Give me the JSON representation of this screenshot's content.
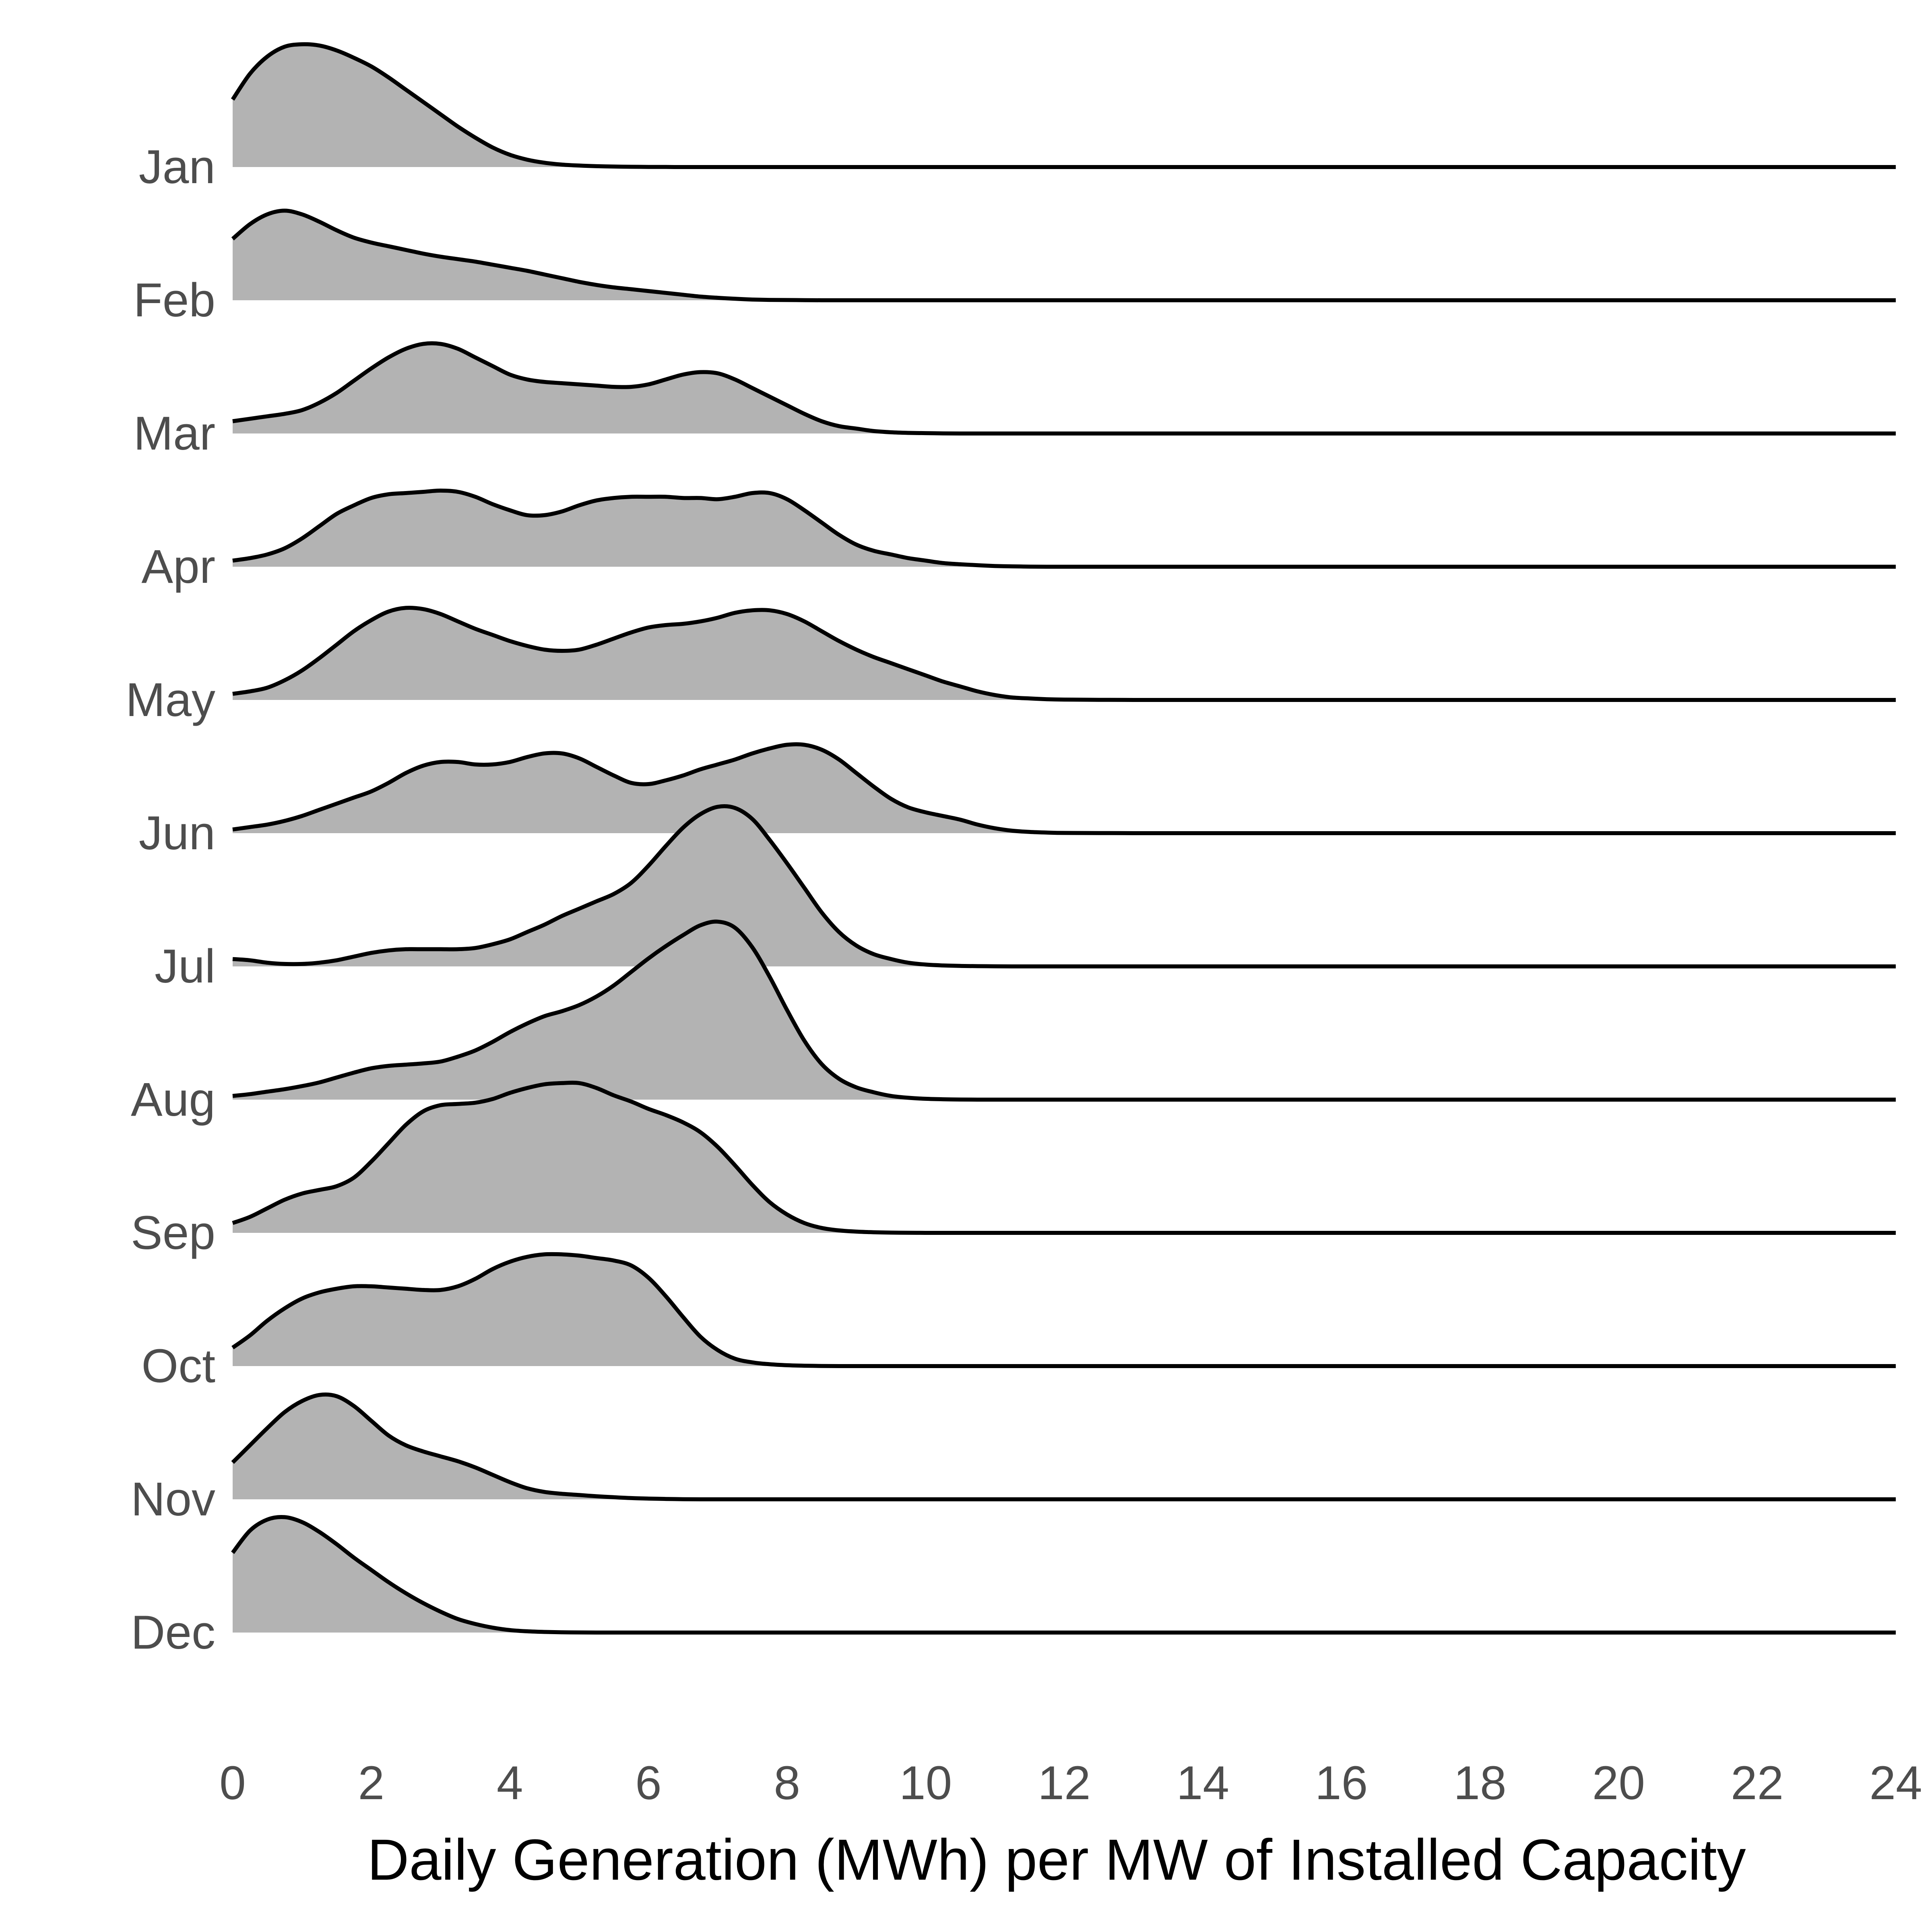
{
  "chart_data": {
    "type": "area",
    "subtype": "ridgeline",
    "title": "",
    "xlabel": "Daily Generation (MWh) per MW of Installed Capacity",
    "ylabel": "",
    "xlim": [
      0,
      24
    ],
    "xticks": [
      0,
      2,
      4,
      6,
      8,
      10,
      12,
      14,
      16,
      18,
      20,
      22,
      24
    ],
    "grid": false,
    "legend": "none",
    "fill_color": "#b3b3b3",
    "line_color": "#000000",
    "categories": [
      "Jan",
      "Feb",
      "Mar",
      "Apr",
      "May",
      "Jun",
      "Jul",
      "Aug",
      "Sep",
      "Oct",
      "Nov",
      "Dec"
    ],
    "x": [
      0,
      0.25,
      0.5,
      0.75,
      1,
      1.25,
      1.5,
      1.75,
      2,
      2.25,
      2.5,
      2.75,
      3,
      3.25,
      3.5,
      3.75,
      4,
      4.25,
      4.5,
      4.75,
      5,
      5.25,
      5.5,
      5.75,
      6,
      6.25,
      6.5,
      6.75,
      7,
      7.25,
      7.5,
      7.75,
      8,
      8.25,
      8.5,
      8.75,
      9,
      9.25,
      9.5,
      9.75,
      10,
      10.25,
      10.5,
      10.75,
      11,
      11.25,
      11.5,
      11.75,
      12,
      12.5,
      13,
      14,
      16,
      18,
      20,
      22,
      24
    ],
    "density_scale_note": "",
    "series": [
      {
        "name": "Jan",
        "values": [
          0.55,
          0.76,
          0.9,
          0.98,
          1.0,
          0.99,
          0.95,
          0.89,
          0.82,
          0.73,
          0.63,
          0.53,
          0.43,
          0.33,
          0.24,
          0.16,
          0.1,
          0.06,
          0.035,
          0.02,
          0.012,
          0.007,
          0.004,
          0.002,
          0.001,
          0.0005,
          0,
          0,
          0,
          0,
          0,
          0,
          0,
          0,
          0,
          0,
          0,
          0,
          0,
          0,
          0,
          0,
          0,
          0,
          0,
          0,
          0,
          0,
          0,
          0,
          0,
          0,
          0,
          0,
          0,
          0,
          0
        ]
      },
      {
        "name": "Feb",
        "values": [
          0.5,
          0.62,
          0.7,
          0.73,
          0.7,
          0.64,
          0.57,
          0.51,
          0.47,
          0.44,
          0.41,
          0.38,
          0.355,
          0.335,
          0.315,
          0.29,
          0.265,
          0.24,
          0.21,
          0.18,
          0.15,
          0.125,
          0.105,
          0.09,
          0.075,
          0.06,
          0.045,
          0.03,
          0.02,
          0.012,
          0.006,
          0.003,
          0.002,
          0.001,
          0,
          0,
          0,
          0,
          0,
          0,
          0,
          0,
          0,
          0,
          0,
          0,
          0,
          0,
          0,
          0,
          0,
          0,
          0,
          0,
          0,
          0,
          0
        ]
      },
      {
        "name": "Mar",
        "values": [
          0.1,
          0.12,
          0.14,
          0.16,
          0.19,
          0.25,
          0.33,
          0.43,
          0.53,
          0.62,
          0.69,
          0.73,
          0.73,
          0.69,
          0.62,
          0.55,
          0.48,
          0.44,
          0.42,
          0.41,
          0.4,
          0.39,
          0.38,
          0.38,
          0.4,
          0.44,
          0.48,
          0.5,
          0.49,
          0.44,
          0.37,
          0.3,
          0.23,
          0.16,
          0.1,
          0.06,
          0.04,
          0.02,
          0.01,
          0.005,
          0.003,
          0.001,
          0,
          0,
          0,
          0,
          0,
          0,
          0,
          0,
          0,
          0,
          0,
          0,
          0,
          0,
          0
        ]
      },
      {
        "name": "Apr",
        "values": [
          0.05,
          0.07,
          0.1,
          0.15,
          0.23,
          0.33,
          0.43,
          0.5,
          0.56,
          0.59,
          0.6,
          0.61,
          0.62,
          0.61,
          0.57,
          0.51,
          0.46,
          0.42,
          0.42,
          0.45,
          0.5,
          0.54,
          0.56,
          0.57,
          0.57,
          0.57,
          0.56,
          0.56,
          0.55,
          0.57,
          0.6,
          0.6,
          0.55,
          0.46,
          0.36,
          0.26,
          0.18,
          0.13,
          0.1,
          0.07,
          0.05,
          0.03,
          0.02,
          0.012,
          0.006,
          0.003,
          0.001,
          0,
          0,
          0,
          0,
          0,
          0,
          0,
          0,
          0,
          0
        ]
      },
      {
        "name": "May",
        "values": [
          0.05,
          0.07,
          0.1,
          0.16,
          0.24,
          0.34,
          0.45,
          0.56,
          0.65,
          0.72,
          0.75,
          0.74,
          0.7,
          0.64,
          0.58,
          0.53,
          0.48,
          0.44,
          0.41,
          0.4,
          0.41,
          0.45,
          0.5,
          0.55,
          0.59,
          0.61,
          0.62,
          0.64,
          0.67,
          0.71,
          0.73,
          0.73,
          0.7,
          0.64,
          0.56,
          0.48,
          0.41,
          0.35,
          0.3,
          0.25,
          0.2,
          0.15,
          0.11,
          0.07,
          0.04,
          0.02,
          0.012,
          0.006,
          0.003,
          0.001,
          0,
          0,
          0,
          0,
          0,
          0,
          0
        ]
      },
      {
        "name": "Jun",
        "values": [
          0.03,
          0.05,
          0.07,
          0.1,
          0.14,
          0.19,
          0.24,
          0.29,
          0.34,
          0.41,
          0.49,
          0.55,
          0.58,
          0.58,
          0.56,
          0.56,
          0.58,
          0.62,
          0.65,
          0.65,
          0.61,
          0.54,
          0.47,
          0.41,
          0.4,
          0.43,
          0.47,
          0.52,
          0.56,
          0.6,
          0.65,
          0.69,
          0.72,
          0.72,
          0.68,
          0.6,
          0.49,
          0.38,
          0.28,
          0.21,
          0.17,
          0.14,
          0.11,
          0.07,
          0.04,
          0.02,
          0.01,
          0.005,
          0.002,
          0.001,
          0,
          0,
          0,
          0,
          0,
          0,
          0
        ]
      },
      {
        "name": "Jul",
        "values": [
          0.06,
          0.05,
          0.03,
          0.02,
          0.02,
          0.03,
          0.05,
          0.08,
          0.11,
          0.13,
          0.14,
          0.14,
          0.14,
          0.14,
          0.15,
          0.18,
          0.22,
          0.28,
          0.34,
          0.41,
          0.47,
          0.53,
          0.59,
          0.68,
          0.82,
          0.98,
          1.13,
          1.24,
          1.3,
          1.29,
          1.2,
          1.03,
          0.84,
          0.64,
          0.44,
          0.28,
          0.17,
          0.1,
          0.06,
          0.03,
          0.015,
          0.008,
          0.004,
          0.002,
          0.001,
          0,
          0,
          0,
          0,
          0,
          0,
          0,
          0,
          0,
          0,
          0,
          0
        ]
      },
      {
        "name": "Aug",
        "values": [
          0.03,
          0.045,
          0.065,
          0.085,
          0.11,
          0.14,
          0.18,
          0.22,
          0.255,
          0.275,
          0.285,
          0.295,
          0.31,
          0.35,
          0.4,
          0.47,
          0.55,
          0.62,
          0.68,
          0.72,
          0.77,
          0.84,
          0.93,
          1.04,
          1.15,
          1.25,
          1.34,
          1.42,
          1.45,
          1.4,
          1.24,
          1.0,
          0.73,
          0.48,
          0.29,
          0.17,
          0.1,
          0.06,
          0.03,
          0.015,
          0.007,
          0.003,
          0.001,
          0,
          0,
          0,
          0,
          0,
          0,
          0,
          0,
          0,
          0,
          0,
          0,
          0,
          0
        ]
      },
      {
        "name": "Sep",
        "values": [
          0.08,
          0.13,
          0.2,
          0.27,
          0.32,
          0.35,
          0.38,
          0.45,
          0.58,
          0.73,
          0.88,
          0.99,
          1.04,
          1.05,
          1.06,
          1.09,
          1.14,
          1.18,
          1.21,
          1.22,
          1.22,
          1.18,
          1.12,
          1.07,
          1.01,
          0.96,
          0.9,
          0.82,
          0.7,
          0.55,
          0.39,
          0.25,
          0.15,
          0.08,
          0.04,
          0.02,
          0.01,
          0.005,
          0.002,
          0.001,
          0,
          0,
          0,
          0,
          0,
          0,
          0,
          0,
          0,
          0,
          0,
          0,
          0,
          0,
          0,
          0,
          0
        ]
      },
      {
        "name": "Oct",
        "values": [
          0.15,
          0.25,
          0.37,
          0.47,
          0.55,
          0.6,
          0.63,
          0.65,
          0.65,
          0.64,
          0.63,
          0.62,
          0.62,
          0.65,
          0.71,
          0.79,
          0.85,
          0.89,
          0.91,
          0.91,
          0.9,
          0.88,
          0.86,
          0.82,
          0.72,
          0.57,
          0.4,
          0.24,
          0.13,
          0.06,
          0.03,
          0.015,
          0.007,
          0.003,
          0.001,
          0,
          0,
          0,
          0,
          0,
          0,
          0,
          0,
          0,
          0,
          0,
          0,
          0,
          0,
          0,
          0,
          0,
          0,
          0,
          0,
          0,
          0
        ]
      },
      {
        "name": "Nov",
        "values": [
          0.3,
          0.44,
          0.58,
          0.71,
          0.8,
          0.85,
          0.84,
          0.76,
          0.64,
          0.52,
          0.44,
          0.39,
          0.35,
          0.31,
          0.26,
          0.2,
          0.14,
          0.09,
          0.06,
          0.045,
          0.035,
          0.025,
          0.017,
          0.01,
          0.006,
          0.003,
          0.001,
          0,
          0,
          0,
          0,
          0,
          0,
          0,
          0,
          0,
          0,
          0,
          0,
          0,
          0,
          0,
          0,
          0,
          0,
          0,
          0,
          0,
          0,
          0,
          0,
          0,
          0,
          0,
          0,
          0,
          0
        ]
      },
      {
        "name": "Dec",
        "values": [
          0.65,
          0.83,
          0.92,
          0.94,
          0.9,
          0.82,
          0.72,
          0.61,
          0.51,
          0.41,
          0.32,
          0.24,
          0.17,
          0.11,
          0.07,
          0.04,
          0.02,
          0.01,
          0.005,
          0.002,
          0.001,
          0,
          0,
          0,
          0,
          0,
          0,
          0,
          0,
          0,
          0,
          0,
          0,
          0,
          0,
          0,
          0,
          0,
          0,
          0,
          0,
          0,
          0,
          0,
          0,
          0,
          0,
          0,
          0,
          0,
          0,
          0,
          0,
          0,
          0,
          0,
          0
        ]
      }
    ]
  }
}
